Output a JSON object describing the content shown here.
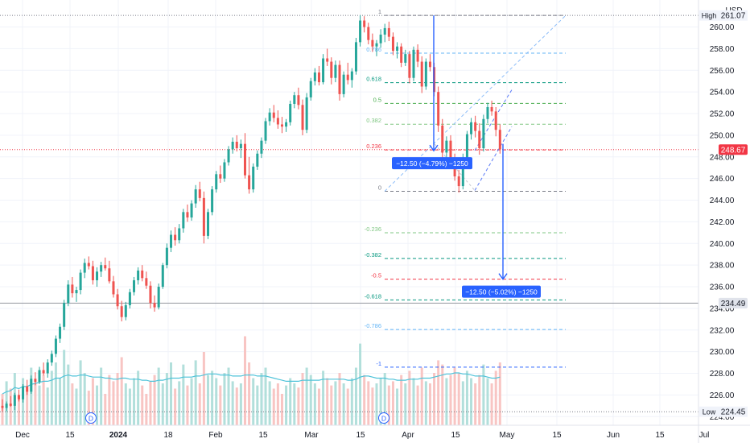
{
  "header": {
    "currency": "USD"
  },
  "colors": {
    "up": "#26a69a",
    "down": "#ef5350",
    "volume_up": "#b2dfdb",
    "volume_down": "#f8c5c3",
    "volume_ma": "#4fc3d9",
    "grid": "#f0f3fa",
    "axis_text": "#131722",
    "measure": "#2962ff",
    "measure_box": "#2962ff",
    "price_tag": "#f23645"
  },
  "chart_data": {
    "type": "candlestick",
    "ylim": [
      223.5,
      262.2
    ],
    "y_ticks": [
      "260.00",
      "258.00",
      "256.00",
      "254.00",
      "252.00",
      "250.00",
      "248.00",
      "246.00",
      "244.00",
      "242.00",
      "240.00",
      "238.00",
      "236.00",
      "234.00",
      "232.00",
      "230.00",
      "228.00",
      "226.00",
      "224.00"
    ],
    "x_ticks": [
      "Dec",
      "15",
      "2024",
      "18",
      "Feb",
      "15",
      "Mar",
      "15",
      "Apr",
      "15",
      "May",
      "15",
      "Jun",
      "15",
      "Jul"
    ],
    "events": [
      "D",
      "D"
    ],
    "price_labels": {
      "high": {
        "label": "High",
        "value": "261.07"
      },
      "low": {
        "label": "Low",
        "value": "224.45"
      },
      "last": {
        "value": "248.67"
      },
      "crosshair": {
        "value": "234.49"
      }
    },
    "fibonacci": [
      {
        "label": "1",
        "level": 261.07,
        "color": "#787b86"
      },
      {
        "label": "0.786",
        "level": 257.59,
        "color": "#64b5f6"
      },
      {
        "label": "0.618",
        "level": 254.86,
        "color": "#089981"
      },
      {
        "label": "0.5",
        "level": 252.94,
        "color": "#4caf50"
      },
      {
        "label": "0.382",
        "level": 251.02,
        "color": "#81c784"
      },
      {
        "label": "0.236",
        "level": 248.65,
        "color": "#f23645"
      },
      {
        "label": "0",
        "level": 244.82,
        "color": "#787b86"
      },
      {
        "label": "-0.236",
        "level": 240.99,
        "color": "#81c784"
      },
      {
        "label": "-0.382",
        "level": 238.62,
        "color": "#089981"
      },
      {
        "label": "-0.5",
        "level": 236.7,
        "color": "#f23645"
      },
      {
        "label": "-0.618",
        "level": 234.78,
        "color": "#089981"
      },
      {
        "label": "-0.786",
        "level": 232.05,
        "color": "#64b5f6"
      },
      {
        "label": "-1",
        "level": 228.57,
        "color": "#2962ff"
      }
    ],
    "measurements": [
      {
        "label": "−12.50 (−4.79%) −1250",
        "from": 261.07,
        "to": 248.57
      },
      {
        "label": "−12.50 (−5.02%) −1250",
        "from": 249.2,
        "to": 236.7
      }
    ],
    "ohlc_series": [
      [
        225.0,
        225.6,
        224.5,
        224.8
      ],
      [
        224.8,
        225.4,
        224.5,
        225.2
      ],
      [
        225.2,
        225.9,
        224.9,
        225.0
      ],
      [
        225.0,
        226.2,
        224.6,
        226.0
      ],
      [
        226.0,
        226.5,
        225.4,
        225.6
      ],
      [
        225.6,
        227.0,
        225.3,
        226.8
      ],
      [
        226.8,
        227.4,
        226.0,
        226.3
      ],
      [
        226.3,
        227.8,
        226.1,
        227.5
      ],
      [
        227.5,
        228.1,
        226.9,
        227.2
      ],
      [
        227.2,
        228.6,
        227.0,
        228.3
      ],
      [
        228.3,
        229.0,
        227.8,
        228.0
      ],
      [
        228.0,
        229.3,
        227.6,
        229.0
      ],
      [
        229.0,
        230.1,
        228.7,
        229.8
      ],
      [
        229.8,
        231.5,
        229.5,
        231.2
      ],
      [
        231.2,
        232.6,
        230.8,
        232.3
      ],
      [
        232.3,
        234.8,
        232.0,
        234.5
      ],
      [
        234.5,
        236.6,
        234.2,
        236.2
      ],
      [
        236.2,
        236.9,
        235.0,
        235.4
      ],
      [
        235.4,
        236.0,
        234.6,
        235.7
      ],
      [
        235.7,
        237.6,
        235.3,
        237.3
      ],
      [
        237.3,
        238.6,
        236.8,
        238.2
      ],
      [
        238.2,
        238.8,
        237.6,
        237.9
      ],
      [
        237.9,
        238.4,
        236.2,
        236.6
      ],
      [
        236.6,
        237.8,
        236.0,
        237.4
      ],
      [
        237.4,
        238.3,
        236.9,
        238.0
      ],
      [
        238.0,
        238.7,
        237.5,
        237.7
      ],
      [
        237.7,
        238.4,
        236.3,
        236.5
      ],
      [
        236.5,
        237.0,
        235.0,
        235.3
      ],
      [
        235.3,
        235.8,
        233.9,
        234.2
      ],
      [
        234.2,
        234.7,
        232.8,
        233.2
      ],
      [
        233.2,
        234.6,
        232.9,
        234.3
      ],
      [
        234.3,
        235.8,
        234.0,
        235.5
      ],
      [
        235.5,
        236.9,
        235.2,
        236.6
      ],
      [
        236.6,
        237.8,
        236.2,
        237.5
      ],
      [
        237.5,
        238.0,
        236.5,
        236.8
      ],
      [
        236.8,
        237.4,
        235.8,
        236.1
      ],
      [
        236.1,
        236.5,
        234.0,
        234.5
      ],
      [
        234.5,
        235.2,
        233.7,
        234.1
      ],
      [
        234.1,
        236.3,
        233.9,
        236.0
      ],
      [
        236.0,
        238.2,
        235.8,
        238.0
      ],
      [
        238.0,
        240.0,
        237.7,
        239.6
      ],
      [
        239.6,
        241.2,
        239.2,
        240.8
      ],
      [
        240.8,
        241.5,
        239.8,
        240.3
      ],
      [
        240.3,
        241.8,
        240.0,
        241.4
      ],
      [
        241.4,
        243.2,
        241.0,
        242.9
      ],
      [
        242.9,
        243.6,
        242.0,
        242.4
      ],
      [
        242.4,
        244.0,
        242.1,
        243.7
      ],
      [
        243.7,
        245.4,
        243.3,
        245.0
      ],
      [
        245.0,
        245.7,
        243.9,
        244.2
      ],
      [
        244.2,
        244.8,
        240.0,
        240.7
      ],
      [
        240.7,
        243.2,
        240.4,
        242.9
      ],
      [
        242.9,
        245.3,
        242.6,
        245.0
      ],
      [
        245.0,
        246.7,
        244.7,
        246.4
      ],
      [
        246.4,
        247.2,
        245.6,
        246.0
      ],
      [
        246.0,
        247.8,
        245.7,
        247.5
      ],
      [
        247.5,
        249.0,
        247.2,
        248.7
      ],
      [
        248.7,
        249.8,
        248.3,
        249.4
      ],
      [
        249.4,
        250.0,
        248.5,
        248.8
      ],
      [
        248.8,
        249.6,
        247.9,
        249.2
      ],
      [
        249.2,
        250.2,
        246.0,
        246.3
      ],
      [
        246.3,
        248.0,
        244.6,
        245.0
      ],
      [
        245.0,
        247.4,
        244.7,
        247.1
      ],
      [
        247.1,
        248.6,
        246.8,
        248.3
      ],
      [
        248.3,
        249.8,
        247.9,
        249.5
      ],
      [
        249.5,
        251.6,
        249.2,
        251.3
      ],
      [
        251.3,
        252.5,
        250.9,
        252.1
      ],
      [
        252.1,
        252.8,
        251.2,
        251.6
      ],
      [
        251.6,
        252.3,
        250.6,
        251.0
      ],
      [
        251.0,
        251.7,
        250.2,
        250.8
      ],
      [
        250.8,
        251.5,
        250.3,
        251.2
      ],
      [
        251.2,
        253.2,
        250.9,
        252.9
      ],
      [
        252.9,
        254.0,
        252.5,
        253.7
      ],
      [
        253.7,
        254.4,
        252.4,
        252.8
      ],
      [
        252.8,
        253.3,
        250.0,
        250.5
      ],
      [
        250.5,
        253.9,
        250.2,
        253.5
      ],
      [
        253.5,
        255.3,
        253.2,
        255.0
      ],
      [
        255.0,
        256.2,
        254.6,
        255.8
      ],
      [
        255.8,
        256.4,
        254.6,
        254.9
      ],
      [
        254.9,
        257.5,
        254.7,
        257.1
      ],
      [
        257.1,
        258.0,
        256.4,
        256.8
      ],
      [
        256.8,
        257.2,
        254.7,
        255.3
      ],
      [
        255.3,
        256.9,
        254.9,
        256.5
      ],
      [
        256.5,
        256.9,
        253.2,
        253.8
      ],
      [
        253.8,
        255.9,
        253.5,
        255.6
      ],
      [
        255.6,
        256.7,
        254.7,
        255.1
      ],
      [
        255.1,
        256.2,
        254.4,
        255.9
      ],
      [
        255.9,
        259.0,
        255.6,
        258.6
      ],
      [
        258.6,
        261.1,
        258.2,
        260.6
      ],
      [
        260.6,
        261.0,
        259.5,
        260.0
      ],
      [
        260.0,
        260.4,
        258.4,
        258.8
      ],
      [
        258.8,
        259.4,
        257.7,
        258.2
      ],
      [
        258.2,
        258.8,
        257.3,
        258.5
      ],
      [
        258.5,
        259.8,
        258.1,
        259.3
      ],
      [
        259.3,
        260.3,
        258.6,
        259.9
      ],
      [
        259.9,
        260.5,
        258.7,
        259.1
      ],
      [
        259.1,
        259.5,
        257.4,
        257.8
      ],
      [
        257.8,
        258.6,
        257.1,
        258.2
      ],
      [
        258.2,
        258.5,
        256.3,
        256.7
      ],
      [
        256.7,
        257.9,
        256.4,
        257.5
      ],
      [
        257.5,
        257.8,
        254.8,
        255.3
      ],
      [
        255.3,
        258.2,
        255.0,
        257.9
      ],
      [
        257.9,
        258.4,
        256.3,
        256.8
      ],
      [
        256.8,
        257.3,
        253.9,
        254.5
      ],
      [
        254.5,
        257.1,
        254.2,
        256.8
      ],
      [
        256.8,
        257.5,
        255.9,
        256.3
      ],
      [
        256.3,
        256.7,
        253.6,
        254.0
      ],
      [
        254.0,
        254.5,
        250.3,
        250.9
      ],
      [
        250.9,
        251.5,
        247.8,
        248.4
      ],
      [
        248.4,
        249.9,
        247.5,
        249.5
      ],
      [
        249.5,
        250.0,
        247.0,
        247.6
      ],
      [
        247.6,
        248.3,
        245.8,
        246.2
      ],
      [
        246.2,
        246.8,
        244.7,
        245.3
      ],
      [
        245.3,
        248.3,
        245.0,
        247.9
      ],
      [
        247.9,
        250.4,
        247.6,
        250.1
      ],
      [
        250.1,
        251.6,
        249.6,
        251.2
      ],
      [
        251.2,
        251.8,
        249.8,
        250.4
      ],
      [
        250.4,
        251.1,
        248.2,
        248.8
      ],
      [
        248.8,
        251.9,
        248.5,
        251.5
      ],
      [
        251.5,
        253.0,
        251.1,
        252.6
      ],
      [
        252.6,
        253.2,
        251.8,
        252.2
      ],
      [
        252.2,
        252.6,
        249.9,
        250.5
      ],
      [
        250.5,
        251.0,
        248.3,
        248.7
      ]
    ],
    "volume": [
      0.3,
      0.42,
      0.35,
      0.5,
      0.28,
      0.45,
      0.33,
      0.55,
      0.4,
      0.38,
      0.48,
      0.36,
      0.52,
      0.6,
      0.45,
      0.72,
      0.58,
      0.4,
      0.35,
      0.62,
      0.5,
      0.33,
      0.45,
      0.38,
      0.55,
      0.3,
      0.48,
      0.42,
      0.5,
      0.65,
      0.4,
      0.35,
      0.45,
      0.52,
      0.38,
      0.3,
      0.42,
      0.48,
      0.55,
      0.4,
      0.5,
      0.6,
      0.35,
      0.42,
      0.58,
      0.38,
      0.45,
      0.62,
      0.4,
      0.7,
      0.48,
      0.52,
      0.45,
      0.38,
      0.5,
      0.55,
      0.42,
      0.36,
      0.4,
      0.85,
      0.6,
      0.45,
      0.38,
      0.5,
      0.55,
      0.42,
      0.35,
      0.4,
      0.3,
      0.38,
      0.45,
      0.4,
      0.36,
      0.5,
      0.55,
      0.48,
      0.4,
      0.35,
      0.52,
      0.45,
      0.38,
      0.42,
      0.5,
      0.4,
      0.35,
      0.45,
      0.55,
      0.78,
      0.48,
      0.42,
      0.36,
      0.4,
      0.45,
      0.5,
      0.38,
      0.42,
      0.35,
      0.48,
      0.4,
      0.52,
      0.45,
      0.38,
      0.55,
      0.42,
      0.4,
      0.5,
      0.62,
      0.58,
      0.45,
      0.48,
      0.55,
      0.5,
      0.42,
      0.52,
      0.45,
      0.4,
      0.48,
      0.58,
      0.45,
      0.4,
      0.52,
      0.6
    ],
    "volume_ma": [
      0.3,
      0.32,
      0.33,
      0.36,
      0.35,
      0.37,
      0.37,
      0.39,
      0.4,
      0.41,
      0.42,
      0.42,
      0.43,
      0.45,
      0.45,
      0.47,
      0.48,
      0.47,
      0.47,
      0.48,
      0.48,
      0.47,
      0.46,
      0.46,
      0.46,
      0.45,
      0.45,
      0.44,
      0.44,
      0.45,
      0.45,
      0.44,
      0.44,
      0.44,
      0.43,
      0.43,
      0.42,
      0.42,
      0.43,
      0.43,
      0.44,
      0.45,
      0.45,
      0.45,
      0.46,
      0.46,
      0.46,
      0.47,
      0.47,
      0.48,
      0.49,
      0.49,
      0.49,
      0.48,
      0.48,
      0.48,
      0.47,
      0.47,
      0.47,
      0.48,
      0.48,
      0.48,
      0.47,
      0.47,
      0.47,
      0.46,
      0.45,
      0.44,
      0.43,
      0.42,
      0.42,
      0.42,
      0.42,
      0.43,
      0.43,
      0.43,
      0.43,
      0.43,
      0.44,
      0.44,
      0.44,
      0.44,
      0.44,
      0.44,
      0.43,
      0.43,
      0.44,
      0.46,
      0.47,
      0.47,
      0.46,
      0.45,
      0.45,
      0.45,
      0.44,
      0.44,
      0.43,
      0.43,
      0.43,
      0.44,
      0.44,
      0.44,
      0.45,
      0.45,
      0.45,
      0.46,
      0.47,
      0.48,
      0.49,
      0.49,
      0.5,
      0.5,
      0.49,
      0.49,
      0.48,
      0.47,
      0.47,
      0.47,
      0.46,
      0.45,
      0.45,
      0.46
    ]
  }
}
